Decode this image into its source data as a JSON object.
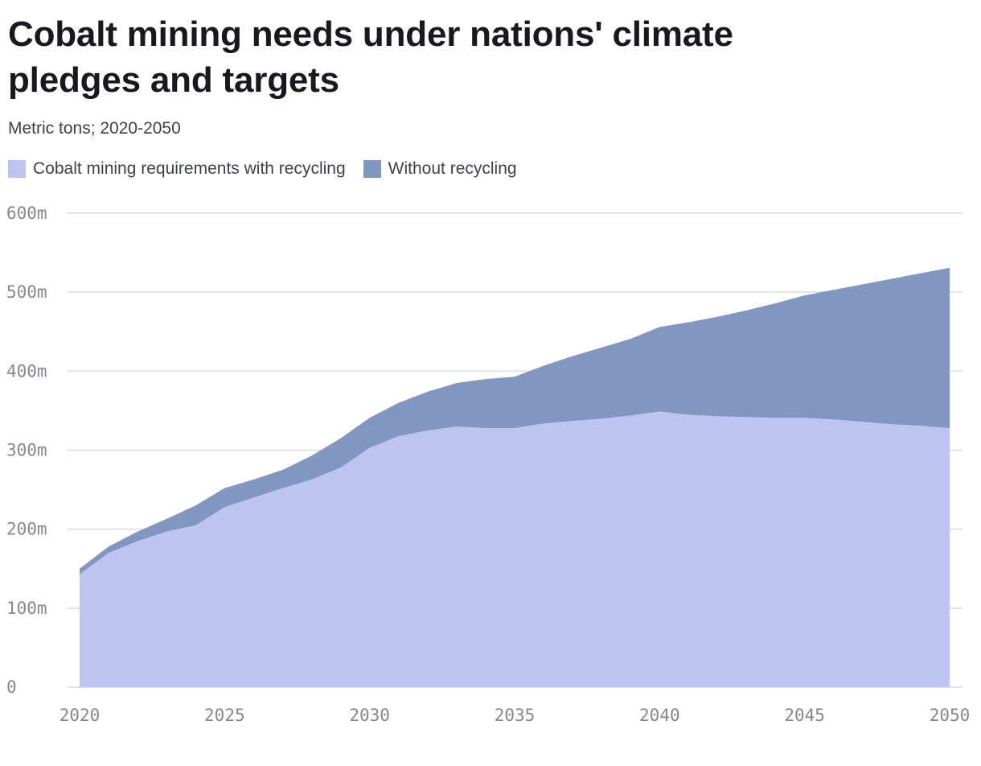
{
  "header": {
    "title": "Cobalt mining needs under nations' climate pledges and targets",
    "subtitle": "Metric tons; 2020-2050"
  },
  "colors": {
    "with_recycling": "#bdc4f0",
    "without_recycling": "#8197bf",
    "grid": "#e3e3e8",
    "tick_text": "#87878e",
    "title_text": "#19181e"
  },
  "chart_data": {
    "type": "area",
    "title": "Cobalt mining needs under nations' climate pledges and targets",
    "subtitle": "Metric tons; 2020-2050",
    "unit": "metric tons (millions)",
    "x": [
      2020,
      2021,
      2022,
      2023,
      2024,
      2025,
      2026,
      2027,
      2028,
      2029,
      2030,
      2031,
      2032,
      2033,
      2034,
      2035,
      2036,
      2037,
      2038,
      2039,
      2040,
      2041,
      2042,
      2043,
      2044,
      2045,
      2046,
      2047,
      2048,
      2049,
      2050
    ],
    "series": [
      {
        "name": "Cobalt mining requirements with recycling",
        "color": "#bdc4f0",
        "values": [
          143,
          170,
          185,
          197,
          205,
          228,
          240,
          252,
          263,
          278,
          303,
          318,
          325,
          330,
          328,
          328,
          334,
          337,
          340,
          344,
          349,
          345,
          343,
          342,
          341,
          341,
          339,
          336,
          333,
          331,
          328
        ]
      },
      {
        "name": "Without recycling",
        "color": "#8197bf",
        "values": [
          150,
          178,
          197,
          213,
          230,
          252,
          263,
          275,
          293,
          315,
          341,
          360,
          374,
          385,
          390,
          393,
          407,
          419,
          430,
          441,
          456,
          462,
          469,
          477,
          486,
          496,
          503,
          510,
          517,
          524,
          531
        ]
      }
    ],
    "ylim": [
      0,
      600
    ],
    "yticks": [
      0,
      100,
      200,
      300,
      400,
      500,
      600
    ],
    "ytick_labels": [
      "0",
      "100m",
      "200m",
      "300m",
      "400m",
      "500m",
      "600m"
    ],
    "xticks": [
      2020,
      2025,
      2030,
      2035,
      2040,
      2045,
      2050
    ],
    "xtick_labels": [
      "2020",
      "2025",
      "2030",
      "2035",
      "2040",
      "2045",
      "2050"
    ],
    "grid": "horizontal",
    "legend_position": "top-left"
  }
}
